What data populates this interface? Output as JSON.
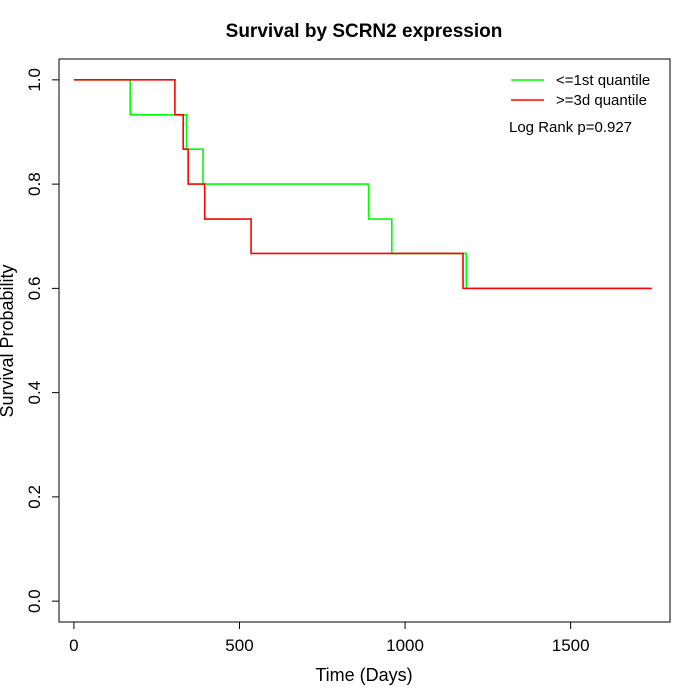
{
  "chart_data": {
    "type": "line",
    "step": true,
    "title": "Survival by SCRN2 expression",
    "xlabel": "Time (Days)",
    "ylabel": "Survival Probability",
    "xlim": [
      -45,
      1800
    ],
    "ylim": [
      -0.04,
      1.04
    ],
    "xticks": [
      0,
      500,
      1000,
      1500
    ],
    "xtick_labels": [
      "0",
      "500",
      "1000",
      "1500"
    ],
    "yticks": [
      0.0,
      0.2,
      0.4,
      0.6,
      0.8,
      1.0
    ],
    "ytick_labels": [
      "0.0",
      "0.2",
      "0.4",
      "0.6",
      "0.8",
      "1.0"
    ],
    "grid": false,
    "legend_position": "top-right",
    "annotation": "Log Rank p=0.927",
    "series": [
      {
        "name": "<=1st quantile",
        "color": "#00ff00",
        "x": [
          0,
          170,
          340,
          390,
          890,
          960,
          1185,
          1745
        ],
        "y": [
          1.0,
          0.933,
          0.867,
          0.8,
          0.733,
          0.667,
          0.6,
          0.6
        ]
      },
      {
        "name": ">=3d quantile",
        "color": "#ff0000",
        "x": [
          0,
          305,
          330,
          345,
          395,
          535,
          1175,
          1745
        ],
        "y": [
          1.0,
          0.933,
          0.867,
          0.8,
          0.733,
          0.667,
          0.6,
          0.6
        ]
      }
    ]
  }
}
